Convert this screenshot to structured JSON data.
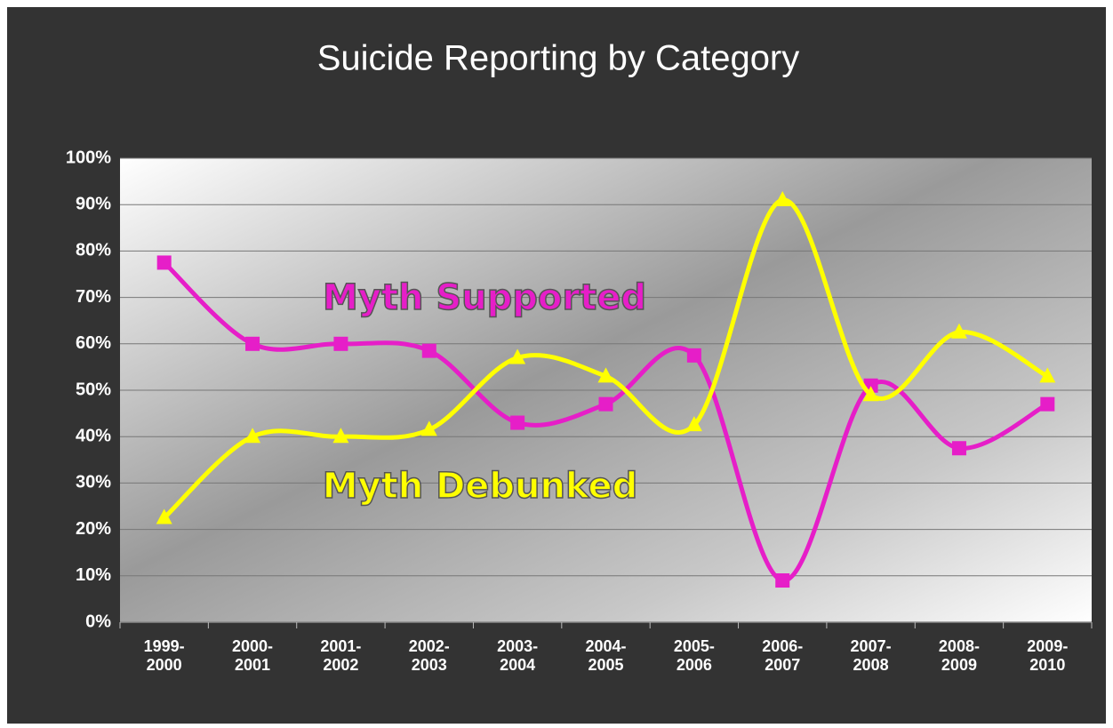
{
  "chart_data": {
    "type": "line",
    "title": "Suicide Reporting by Category",
    "categories": [
      "1999-2000",
      "2000-2001",
      "2001-2002",
      "2002-2003",
      "2003-2004",
      "2004-2005",
      "2005-2006",
      "2006-2007",
      "2007-2008",
      "2008-2009",
      "2009-2010"
    ],
    "series": [
      {
        "name": "Myth Supported",
        "color": "#e61ec8",
        "values": [
          77.5,
          60,
          60,
          58.5,
          43,
          47,
          57.5,
          9,
          51,
          37.5,
          47
        ]
      },
      {
        "name": "Myth Debunked",
        "color": "#ffff00",
        "values": [
          22.5,
          40,
          40,
          41.5,
          57,
          53,
          42.5,
          91,
          49,
          62.5,
          53
        ]
      }
    ],
    "ylim": [
      0,
      100
    ],
    "yticks": [
      {
        "value": 0,
        "label": "0%"
      },
      {
        "value": 10,
        "label": "10%"
      },
      {
        "value": 20,
        "label": "20%"
      },
      {
        "value": 30,
        "label": "30%"
      },
      {
        "value": 40,
        "label": "40%"
      },
      {
        "value": 50,
        "label": "50%"
      },
      {
        "value": 60,
        "label": "60%"
      },
      {
        "value": 70,
        "label": "70%"
      },
      {
        "value": 80,
        "label": "80%"
      },
      {
        "value": 90,
        "label": "90%"
      },
      {
        "value": 100,
        "label": "100%"
      }
    ],
    "grid": true,
    "smooth": true
  }
}
